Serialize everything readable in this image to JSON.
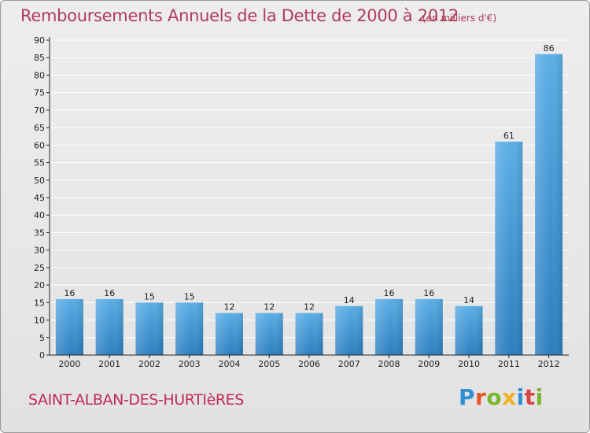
{
  "header": {
    "title": "Remboursements Annuels de la Dette de 2000 à 2012",
    "subtitle": "(en milliers d'€)"
  },
  "footer": {
    "commune": "SAINT-ALBAN-DES-HURTIèRES",
    "logo_text": "Proxiti"
  },
  "chart_data": {
    "type": "bar",
    "title": "Remboursements Annuels de la Dette de 2000 à 2012",
    "subtitle": "(en milliers d'€)",
    "xlabel": "",
    "ylabel": "",
    "categories": [
      "2000",
      "2001",
      "2002",
      "2003",
      "2004",
      "2005",
      "2006",
      "2007",
      "2008",
      "2009",
      "2010",
      "2011",
      "2012"
    ],
    "values": [
      16,
      16,
      15,
      15,
      12,
      12,
      12,
      14,
      16,
      16,
      14,
      61,
      86
    ],
    "ylim": [
      0,
      90
    ],
    "yticks": [
      0,
      5,
      10,
      15,
      20,
      25,
      30,
      35,
      40,
      45,
      50,
      55,
      60,
      65,
      70,
      75,
      80,
      85,
      90
    ],
    "grid": true,
    "colors": {
      "bar_top": "#5aaee6",
      "bar_bottom": "#2c7fc0",
      "grid": "#ffffff",
      "axis": "#222222"
    }
  }
}
